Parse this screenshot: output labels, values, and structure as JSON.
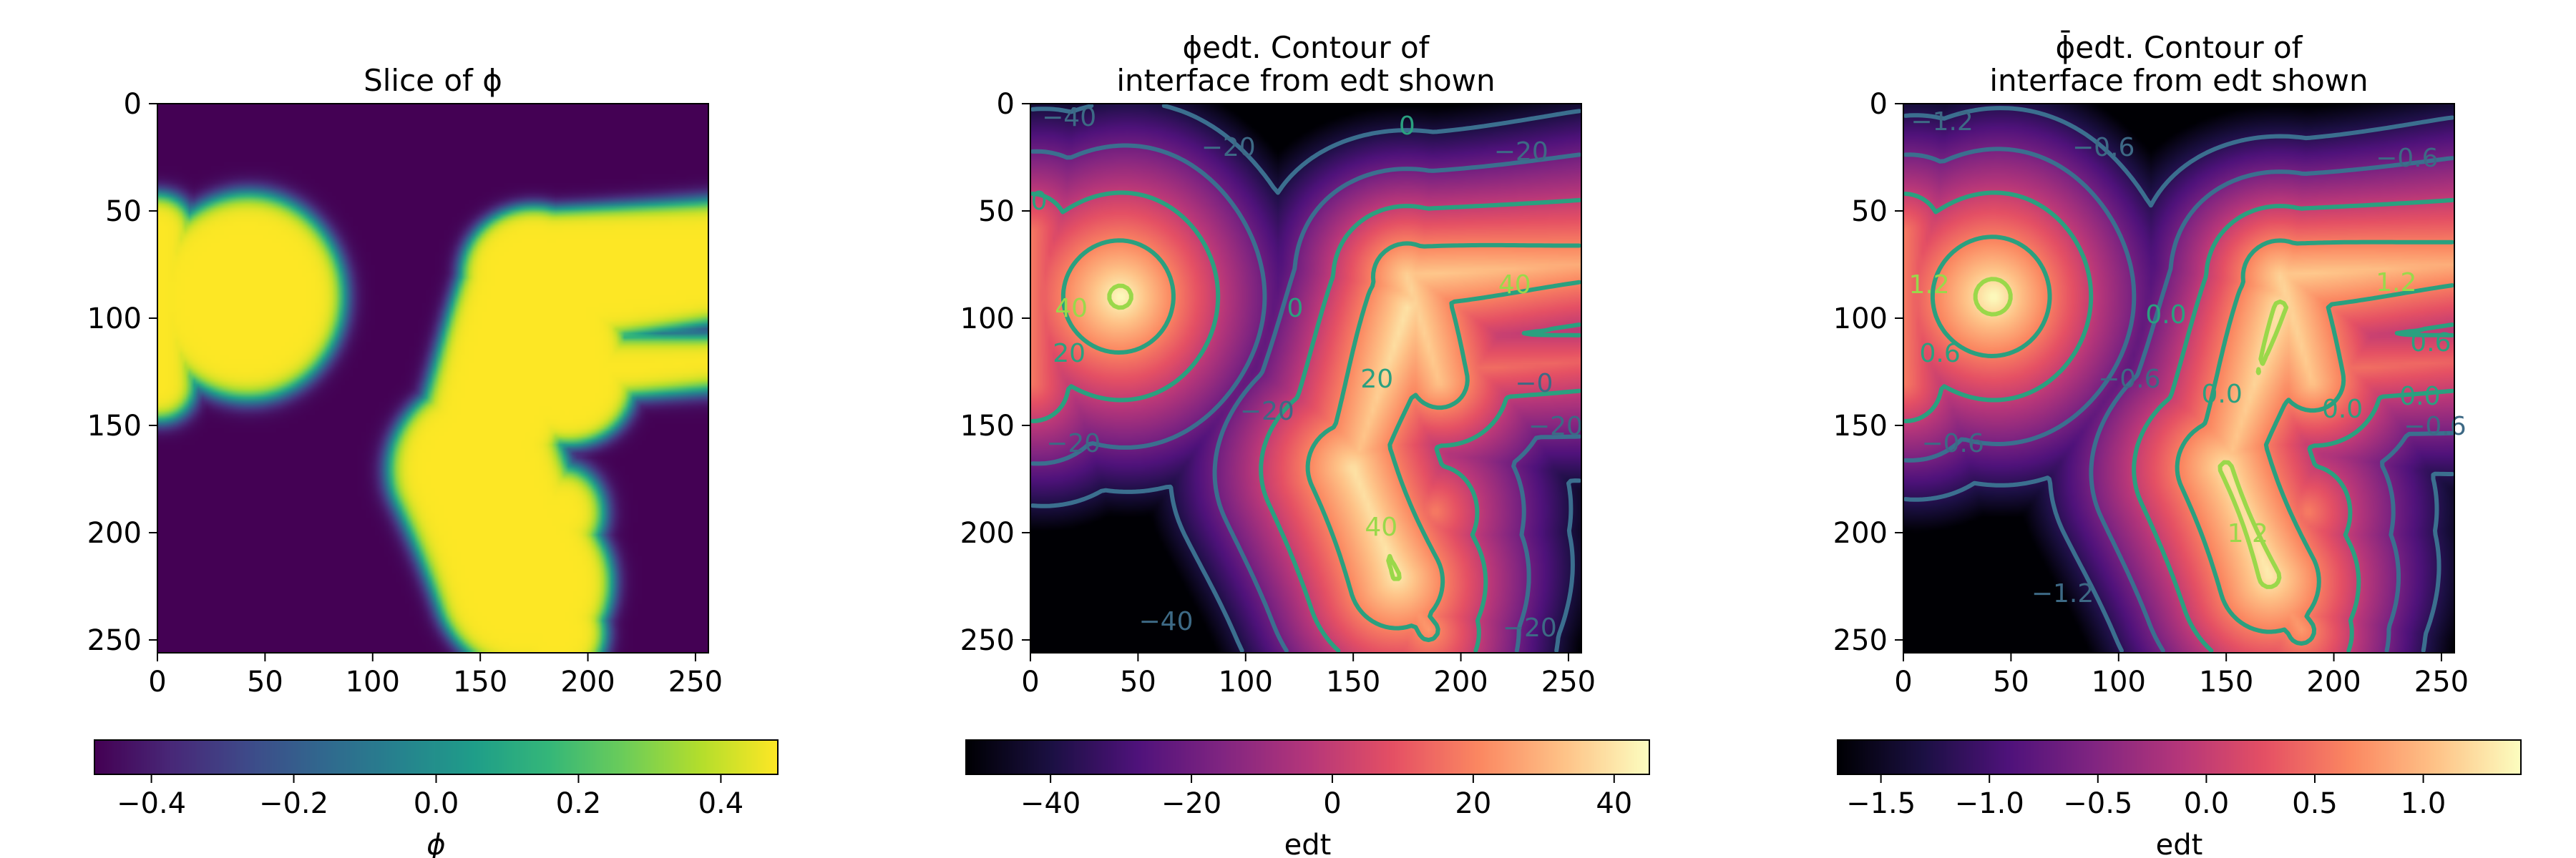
{
  "chart_data": [
    {
      "type": "heatmap",
      "title": "Slice of ϕ",
      "title_lines": [
        "Slice of ϕ"
      ],
      "x_ticks": [
        0,
        50,
        100,
        150,
        200,
        250
      ],
      "y_ticks": [
        0,
        50,
        100,
        150,
        200,
        250
      ],
      "xlim": [
        0,
        256
      ],
      "ylim": [
        256,
        0
      ],
      "colormap": "viridis",
      "colorbar": {
        "label": "ϕ",
        "range": [
          -0.48,
          0.48
        ],
        "ticks": [
          -0.4,
          -0.2,
          0.0,
          0.2,
          0.4
        ],
        "tick_labels": [
          "−0.4",
          "−0.2",
          "0.0",
          "0.2",
          "0.4"
        ]
      },
      "value_range": [
        -0.48,
        0.48
      ],
      "contour_labels": []
    },
    {
      "type": "heatmap",
      "title": "ϕedt. Contour of interface from edt shown",
      "title_lines": [
        "ϕedt. Contour of",
        "interface from edt shown"
      ],
      "x_ticks": [
        0,
        50,
        100,
        150,
        200,
        250
      ],
      "y_ticks": [
        0,
        50,
        100,
        150,
        200,
        250
      ],
      "xlim": [
        0,
        256
      ],
      "ylim": [
        256,
        0
      ],
      "colormap": "magma",
      "colorbar": {
        "label": "edt",
        "range": [
          -52,
          45
        ],
        "ticks": [
          -40,
          -20,
          0,
          20,
          40
        ],
        "tick_labels": [
          "−40",
          "−20",
          "0",
          "20",
          "40"
        ]
      },
      "value_range": [
        -52,
        45
      ],
      "contour_levels": [
        -40,
        -20,
        0,
        20,
        40
      ],
      "contour_labels": [
        {
          "text": "−40",
          "x": 18,
          "y": 6
        },
        {
          "text": "−20",
          "x": 92,
          "y": 20
        },
        {
          "text": "−20",
          "x": 228,
          "y": 22
        },
        {
          "text": "0",
          "x": 4,
          "y": 45
        },
        {
          "text": "0",
          "x": 175,
          "y": 10
        },
        {
          "text": "40",
          "x": 19,
          "y": 95
        },
        {
          "text": "20",
          "x": 18,
          "y": 116
        },
        {
          "text": "40",
          "x": 225,
          "y": 84
        },
        {
          "text": "0",
          "x": 123,
          "y": 95
        },
        {
          "text": "20",
          "x": 161,
          "y": 128
        },
        {
          "text": "−20",
          "x": 110,
          "y": 143
        },
        {
          "text": "−0",
          "x": 234,
          "y": 130
        },
        {
          "text": "−20",
          "x": 244,
          "y": 150
        },
        {
          "text": "−20",
          "x": 20,
          "y": 158
        },
        {
          "text": "40",
          "x": 163,
          "y": 197
        },
        {
          "text": "−40",
          "x": 63,
          "y": 241
        },
        {
          "text": "−20",
          "x": 232,
          "y": 244
        }
      ]
    },
    {
      "type": "heatmap",
      "title": "ϕ̄edt. Contour of interface from edt shown",
      "title_lines": [
        "ϕ̄edt. Contour of",
        "interface from edt shown"
      ],
      "x_ticks": [
        0,
        50,
        100,
        150,
        200,
        250
      ],
      "y_ticks": [
        0,
        50,
        100,
        150,
        200,
        250
      ],
      "xlim": [
        0,
        256
      ],
      "ylim": [
        256,
        0
      ],
      "colormap": "magma",
      "colorbar": {
        "label": "edt",
        "range": [
          -1.7,
          1.45
        ],
        "ticks": [
          -1.5,
          -1.0,
          -0.5,
          0.0,
          0.5,
          1.0
        ],
        "tick_labels": [
          "−1.5",
          "−1.0",
          "−0.5",
          "0.0",
          "0.5",
          "1.0"
        ]
      },
      "value_range": [
        -1.7,
        1.45
      ],
      "contour_levels": [
        -1.2,
        -0.6,
        0.0,
        0.6,
        1.2
      ],
      "contour_labels": [
        {
          "text": "−1.2",
          "x": 18,
          "y": 8
        },
        {
          "text": "−0.6",
          "x": 93,
          "y": 20
        },
        {
          "text": "−0.6",
          "x": 234,
          "y": 25
        },
        {
          "text": "1.2",
          "x": 12,
          "y": 84
        },
        {
          "text": "0.6",
          "x": 17,
          "y": 116
        },
        {
          "text": "1.2",
          "x": 229,
          "y": 83
        },
        {
          "text": "0.6",
          "x": 245,
          "y": 111
        },
        {
          "text": "0.0",
          "x": 122,
          "y": 98
        },
        {
          "text": "0.0",
          "x": 240,
          "y": 136
        },
        {
          "text": "−0.6",
          "x": 105,
          "y": 128
        },
        {
          "text": "0.0",
          "x": 148,
          "y": 135
        },
        {
          "text": "0.0",
          "x": 204,
          "y": 142
        },
        {
          "text": "−0.6",
          "x": 247,
          "y": 150
        },
        {
          "text": "−0.6",
          "x": 23,
          "y": 158
        },
        {
          "text": "1.2",
          "x": 160,
          "y": 200
        },
        {
          "text": "−1.2",
          "x": 74,
          "y": 228
        }
      ]
    }
  ]
}
